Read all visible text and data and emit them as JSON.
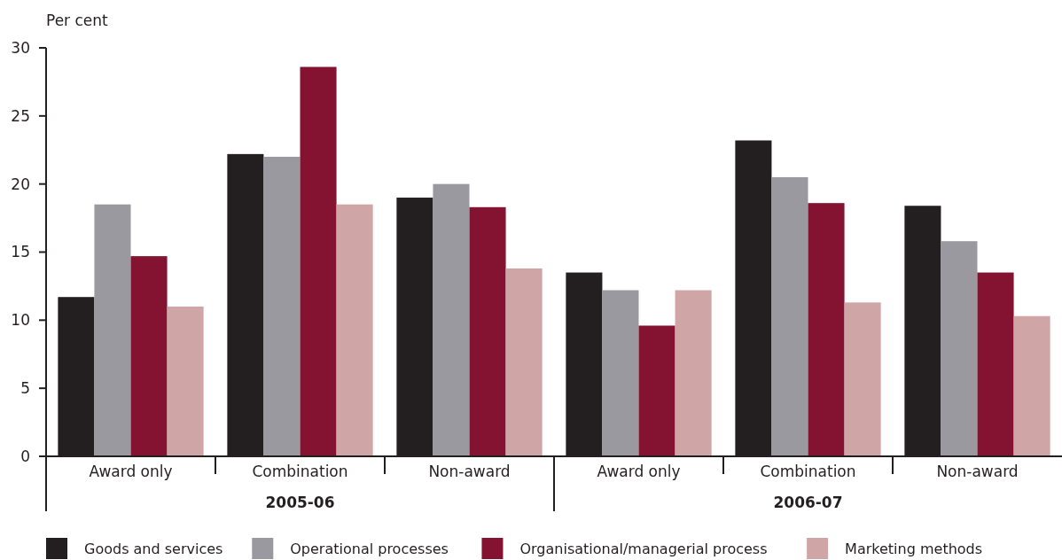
{
  "chart_data": {
    "type": "bar",
    "ylabel": "Per cent",
    "categories": [
      "Award only",
      "Combination",
      "Non-award",
      "Award only",
      "Combination",
      "Non-award"
    ],
    "annotations": [
      "2005-06",
      "2006-07"
    ],
    "series": [
      {
        "name": "Goods and services",
        "color": "#231f20",
        "values": [
          11.7,
          22.2,
          19.0,
          13.5,
          23.2,
          18.4
        ]
      },
      {
        "name": "Operational processes",
        "color": "#9a999f",
        "values": [
          18.5,
          22.0,
          20.0,
          12.2,
          20.5,
          15.8
        ]
      },
      {
        "name": "Organisational/managerial process",
        "color": "#841331",
        "values": [
          14.7,
          28.6,
          18.3,
          9.6,
          18.6,
          13.5
        ]
      },
      {
        "name": "Marketing methods",
        "color": "#cfa6a5",
        "values": [
          11.0,
          18.5,
          13.8,
          12.2,
          11.3,
          10.3
        ]
      }
    ],
    "ylim": [
      0,
      30
    ],
    "yticks": [
      0,
      5,
      10,
      15,
      20,
      25,
      30
    ],
    "legend": "bottom"
  }
}
